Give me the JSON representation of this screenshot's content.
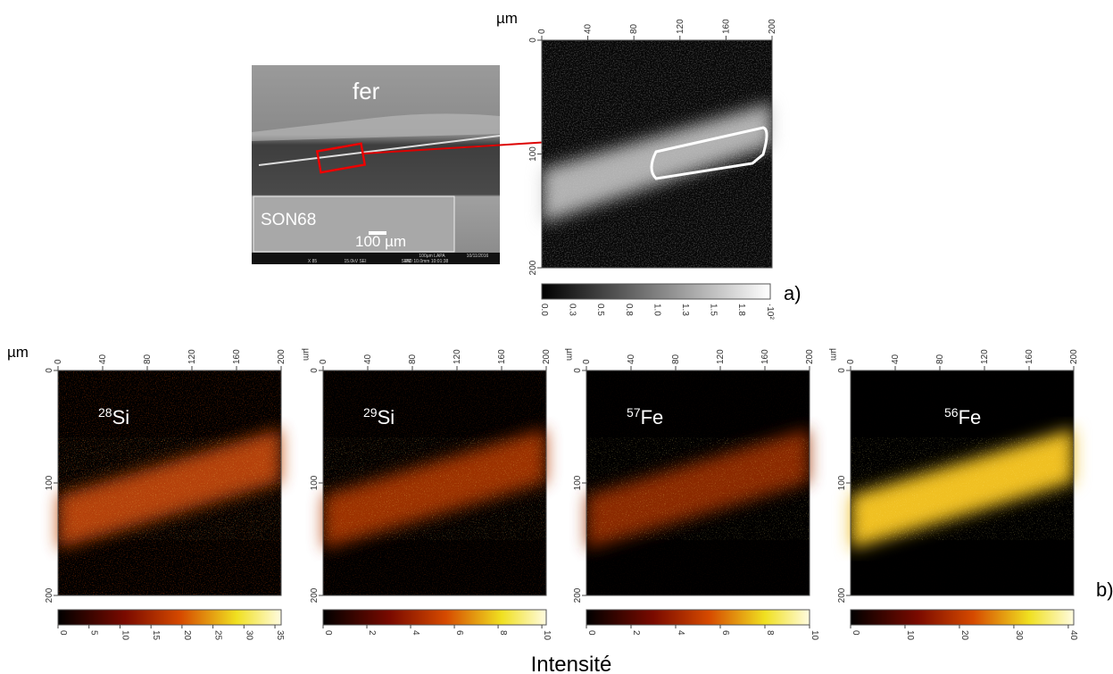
{
  "sem": {
    "top_label": "fer",
    "bottom_label": "SON68",
    "scale_label": "100 µm",
    "footer": [
      "X 85",
      "15.0kV SEI",
      "SEM",
      "WD 10.0mm 10:01:38",
      "100µm LAPA",
      "10/11/2016"
    ]
  },
  "overview": {
    "unit": "µm",
    "xlim": [
      0,
      200
    ],
    "ylim": [
      0,
      200
    ],
    "xticks": [
      0,
      40,
      80,
      120,
      160,
      200
    ],
    "yticks": [
      0,
      100,
      200
    ],
    "colorbar_ticks": [
      "0.0",
      "0.3",
      "0.5",
      "0.8",
      "1.0",
      "1.3",
      "1.5",
      "1.8"
    ],
    "colorbar_multiplier": "·10²",
    "label": "a)"
  },
  "maps": [
    {
      "unit": "µm",
      "mass": "28",
      "element": "Si",
      "xlim": [
        0,
        200
      ],
      "ylim": [
        0,
        200
      ],
      "xticks": [
        0,
        40,
        80,
        120,
        160,
        200
      ],
      "yticks": [
        0,
        100,
        200
      ],
      "colorbar_lim": [
        0,
        36
      ],
      "colorbar_ticks": [
        0,
        5,
        10,
        15,
        20,
        25,
        30,
        35
      ]
    },
    {
      "unit": "µm",
      "mass": "29",
      "element": "Si",
      "xlim": [
        0,
        200
      ],
      "ylim": [
        0,
        200
      ],
      "xticks": [
        0,
        40,
        80,
        120,
        160,
        200
      ],
      "yticks": [
        0,
        100,
        200
      ],
      "colorbar_lim": [
        0,
        10.2
      ],
      "colorbar_ticks": [
        0,
        2,
        4,
        6,
        8,
        10
      ]
    },
    {
      "unit": "µm",
      "mass": "57",
      "element": "Fe",
      "xlim": [
        0,
        200
      ],
      "ylim": [
        0,
        200
      ],
      "xticks": [
        0,
        40,
        80,
        120,
        160,
        200
      ],
      "yticks": [
        0,
        100,
        200
      ],
      "colorbar_lim": [
        0,
        10
      ],
      "colorbar_ticks": [
        0,
        2,
        4,
        6,
        8,
        10
      ]
    },
    {
      "unit": "µm",
      "mass": "56",
      "element": "Fe",
      "xlim": [
        0,
        200
      ],
      "ylim": [
        0,
        200
      ],
      "xticks": [
        0,
        40,
        80,
        120,
        160,
        200
      ],
      "yticks": [
        0,
        100,
        200
      ],
      "colorbar_lim": [
        0,
        41
      ],
      "colorbar_ticks": [
        0,
        10,
        20,
        30,
        40
      ]
    }
  ],
  "maps_label": "b)",
  "caption": "Intensité"
}
